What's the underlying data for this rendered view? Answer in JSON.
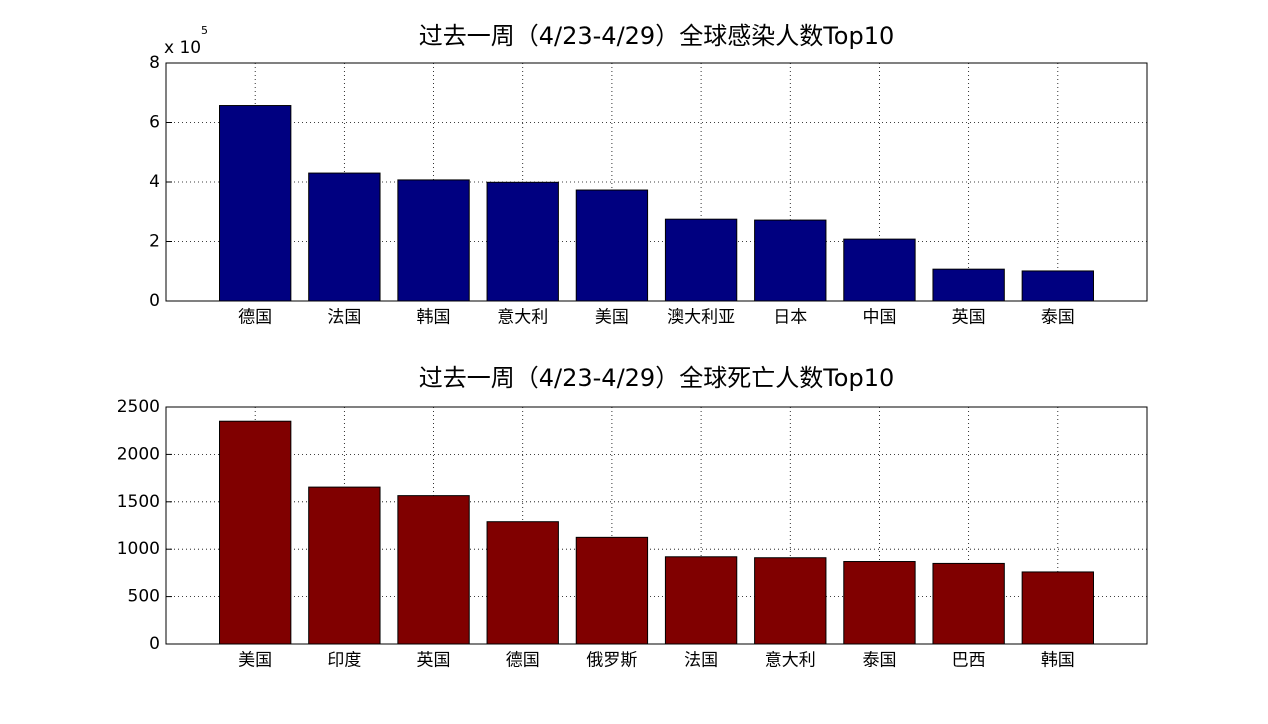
{
  "chart_data": [
    {
      "type": "bar",
      "title": "过去一周（4/23-4/29）全球感染人数Top10",
      "y_scale_label": {
        "base": "x 10",
        "exponent": "5"
      },
      "categories": [
        "德国",
        "法国",
        "韩国",
        "意大利",
        "美国",
        "澳大利亚",
        "日本",
        "中国",
        "英国",
        "泰国"
      ],
      "values": [
        6.57,
        4.3,
        4.07,
        3.99,
        3.73,
        2.75,
        2.72,
        2.08,
        1.07,
        1.01
      ],
      "color": "#000080",
      "ylim": [
        0,
        8
      ],
      "yticks": [
        0,
        2,
        4,
        6,
        8
      ],
      "grid": true
    },
    {
      "type": "bar",
      "title": "过去一周（4/23-4/29）全球死亡人数Top10",
      "categories": [
        "美国",
        "印度",
        "英国",
        "德国",
        "俄罗斯",
        "法国",
        "意大利",
        "泰国",
        "巴西",
        "韩国"
      ],
      "values": [
        2350,
        1655,
        1565,
        1290,
        1125,
        920,
        910,
        870,
        850,
        760
      ],
      "color": "#800000",
      "ylim": [
        0,
        2500
      ],
      "yticks": [
        0,
        500,
        1000,
        1500,
        2000,
        2500
      ],
      "grid": true
    }
  ]
}
